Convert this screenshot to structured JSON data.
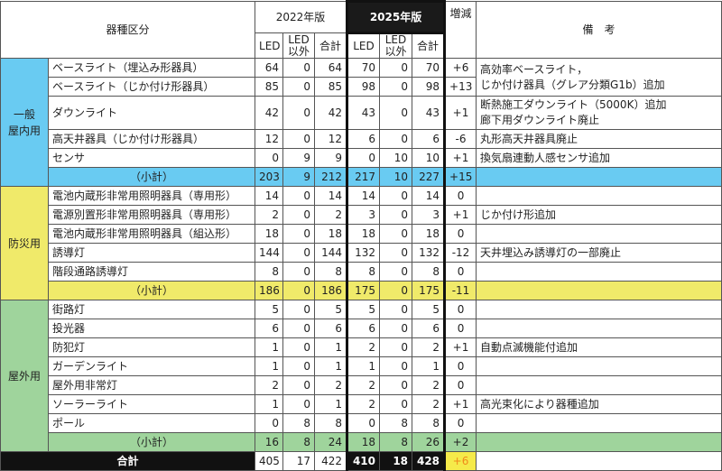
{
  "header": {
    "category": "器種区分",
    "y2022": "2022年版",
    "y2025": "2025年版",
    "led": "LED",
    "non_led": "LED\n以外",
    "total": "合計",
    "diff": "増減",
    "remarks": "備　考"
  },
  "colors": {
    "general": "#69cbf2",
    "disaster": "#f0ea6a",
    "outdoor": "#9fd49c",
    "total_diff": "#f5ea4a",
    "total_diff_text": "#f08a1a"
  },
  "groups": [
    {
      "name": "一般\n屋内用",
      "color": "general",
      "rows": [
        {
          "item": "ベースライト（埋込み形器具）",
          "v22": [
            64,
            0,
            64
          ],
          "v25": [
            70,
            0,
            70
          ],
          "diff": "+6",
          "remark": "高効率ベースライト，\nじか付け器具（グレア分類G1b）追加",
          "remark_span": 2
        },
        {
          "item": "ベースライト（じか付け形器具）",
          "v22": [
            85,
            0,
            85
          ],
          "v25": [
            98,
            0,
            98
          ],
          "diff": "+13",
          "remark_span": 0
        },
        {
          "item": "ダウンライト",
          "v22": [
            42,
            0,
            42
          ],
          "v25": [
            43,
            0,
            43
          ],
          "diff": "+1",
          "remark": "断熱施工ダウンライト（5000K）追加\n廊下用ダウンライト廃止",
          "tall": true
        },
        {
          "item": "高天井器具（じか付け形器具）",
          "v22": [
            12,
            0,
            12
          ],
          "v25": [
            6,
            0,
            6
          ],
          "diff": "-6",
          "remark": "丸形高天井器具廃止"
        },
        {
          "item": "センサ",
          "v22": [
            0,
            9,
            9
          ],
          "v25": [
            0,
            10,
            10
          ],
          "diff": "+1",
          "remark": "換気扇連動人感センサ追加"
        }
      ],
      "subtotal": {
        "label": "（小計）",
        "v22": [
          203,
          9,
          212
        ],
        "v25": [
          217,
          10,
          227
        ],
        "diff": "+15"
      }
    },
    {
      "name": "防災用",
      "color": "disaster",
      "rows": [
        {
          "item": "電池内蔵形非常用照明器具（専用形）",
          "v22": [
            14,
            0,
            14
          ],
          "v25": [
            14,
            0,
            14
          ],
          "diff": "0",
          "remark": ""
        },
        {
          "item": "電源別置形非常用照明器具（専用形）",
          "v22": [
            2,
            0,
            2
          ],
          "v25": [
            3,
            0,
            3
          ],
          "diff": "+1",
          "remark": "じか付け形追加"
        },
        {
          "item": "電池内蔵形非常用照明器具（組込形）",
          "v22": [
            18,
            0,
            18
          ],
          "v25": [
            18,
            0,
            18
          ],
          "diff": "0",
          "remark": ""
        },
        {
          "item": "誘導灯",
          "v22": [
            144,
            0,
            144
          ],
          "v25": [
            132,
            0,
            132
          ],
          "diff": "-12",
          "remark": "天井埋込み誘導灯の一部廃止"
        },
        {
          "item": "階段通路誘導灯",
          "v22": [
            8,
            0,
            8
          ],
          "v25": [
            8,
            0,
            8
          ],
          "diff": "0",
          "remark": ""
        }
      ],
      "subtotal": {
        "label": "（小計）",
        "v22": [
          186,
          0,
          186
        ],
        "v25": [
          175,
          0,
          175
        ],
        "diff": "-11"
      }
    },
    {
      "name": "屋外用",
      "color": "outdoor",
      "rows": [
        {
          "item": "街路灯",
          "v22": [
            5,
            0,
            5
          ],
          "v25": [
            5,
            0,
            5
          ],
          "diff": "0",
          "remark": ""
        },
        {
          "item": "投光器",
          "v22": [
            6,
            0,
            6
          ],
          "v25": [
            6,
            0,
            6
          ],
          "diff": "0",
          "remark": ""
        },
        {
          "item": "防犯灯",
          "v22": [
            1,
            0,
            1
          ],
          "v25": [
            2,
            0,
            2
          ],
          "diff": "+1",
          "remark": "自動点滅機能付追加"
        },
        {
          "item": "ガーデンライト",
          "v22": [
            1,
            0,
            1
          ],
          "v25": [
            1,
            0,
            1
          ],
          "diff": "0",
          "remark": ""
        },
        {
          "item": "屋外用非常灯",
          "v22": [
            2,
            0,
            2
          ],
          "v25": [
            2,
            0,
            2
          ],
          "diff": "0",
          "remark": ""
        },
        {
          "item": "ソーラーライト",
          "v22": [
            1,
            0,
            1
          ],
          "v25": [
            2,
            0,
            2
          ],
          "diff": "+1",
          "remark": "高光束化により器種追加"
        },
        {
          "item": "ポール",
          "v22": [
            0,
            8,
            8
          ],
          "v25": [
            0,
            8,
            8
          ],
          "diff": "0",
          "remark": ""
        }
      ],
      "subtotal": {
        "label": "（小計）",
        "v22": [
          16,
          8,
          24
        ],
        "v25": [
          18,
          8,
          26
        ],
        "diff": "+2"
      }
    }
  ],
  "total": {
    "label": "合計",
    "v22": [
      405,
      17,
      422
    ],
    "v25": [
      410,
      18,
      428
    ],
    "diff": "+6"
  }
}
